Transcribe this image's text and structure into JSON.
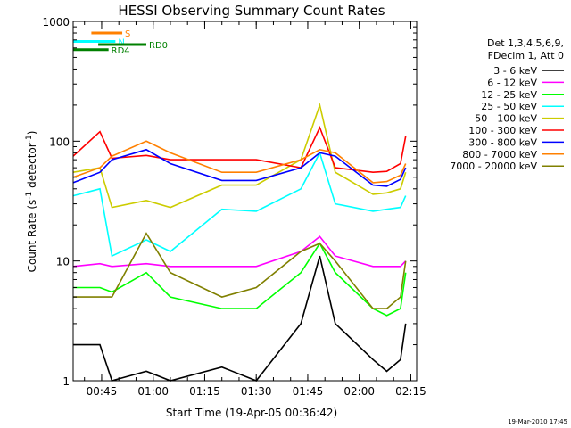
{
  "chart_data": {
    "type": "line",
    "title": "HESSI Observing Summary Count Rates",
    "xlabel": "Start Time (19-Apr-05 00:36:42)",
    "ylabel_main": "Count Rate (s",
    "ylabel_exp1": "-1",
    "ylabel_mid": " detector",
    "ylabel_exp2": "-1",
    "ylabel_end": ")",
    "y_scale": "log",
    "ylim": [
      1,
      1000
    ],
    "xlim": [
      "00:36:42",
      "02:16:42"
    ],
    "x_ticks": [
      "00:45",
      "01:00",
      "01:15",
      "01:30",
      "01:45",
      "02:00",
      "02:15"
    ],
    "y_ticks": [
      "1",
      "10",
      "100",
      "1000"
    ],
    "legend_position": "right",
    "legend_header": [
      "Det 1,3,4,5,6,9,",
      "FDecim 1, Att 0"
    ],
    "series": [
      {
        "name": "3 - 6 keV",
        "color": "#000000",
        "points": [
          [
            "00:36:42",
            2
          ],
          [
            "00:44:30",
            2
          ],
          [
            "00:48:00",
            1
          ],
          [
            "00:58:00",
            1.2
          ],
          [
            "01:05:00",
            1
          ],
          [
            "01:20:00",
            1.3
          ],
          [
            "01:30:00",
            1
          ],
          [
            "01:43:00",
            3
          ],
          [
            "01:48:30",
            11
          ],
          [
            "01:53:00",
            3
          ],
          [
            "02:04:00",
            1.5
          ],
          [
            "02:08:00",
            1.2
          ],
          [
            "02:12:00",
            1.5
          ],
          [
            "02:13:30",
            3
          ]
        ]
      },
      {
        "name": "6 - 12 keV",
        "color": "#ff00ff",
        "points": [
          [
            "00:36:42",
            9
          ],
          [
            "00:44:30",
            9.5
          ],
          [
            "00:48:00",
            9
          ],
          [
            "00:58:00",
            9.5
          ],
          [
            "01:05:00",
            9
          ],
          [
            "01:20:00",
            9
          ],
          [
            "01:30:00",
            9
          ],
          [
            "01:43:00",
            12
          ],
          [
            "01:48:30",
            16
          ],
          [
            "01:53:00",
            11
          ],
          [
            "02:04:00",
            9
          ],
          [
            "02:08:00",
            9
          ],
          [
            "02:12:00",
            9
          ],
          [
            "02:13:30",
            10
          ]
        ]
      },
      {
        "name": "12 - 25 keV",
        "color": "#00ff00",
        "points": [
          [
            "00:36:42",
            6
          ],
          [
            "00:44:30",
            6
          ],
          [
            "00:48:00",
            5.5
          ],
          [
            "00:58:00",
            8
          ],
          [
            "01:05:00",
            5
          ],
          [
            "01:20:00",
            4
          ],
          [
            "01:30:00",
            4
          ],
          [
            "01:43:00",
            8
          ],
          [
            "01:48:30",
            14
          ],
          [
            "01:53:00",
            8
          ],
          [
            "02:04:00",
            4
          ],
          [
            "02:08:00",
            3.5
          ],
          [
            "02:12:00",
            4
          ],
          [
            "02:13:30",
            8
          ]
        ]
      },
      {
        "name": "25 - 50 keV",
        "color": "#00ffff",
        "points": [
          [
            "00:36:42",
            35
          ],
          [
            "00:44:30",
            40
          ],
          [
            "00:48:00",
            11
          ],
          [
            "00:58:00",
            15
          ],
          [
            "01:05:00",
            12
          ],
          [
            "01:20:00",
            27
          ],
          [
            "01:30:00",
            26
          ],
          [
            "01:43:00",
            40
          ],
          [
            "01:48:30",
            80
          ],
          [
            "01:53:00",
            30
          ],
          [
            "02:04:00",
            26
          ],
          [
            "02:08:00",
            27
          ],
          [
            "02:12:00",
            28
          ],
          [
            "02:13:30",
            35
          ]
        ]
      },
      {
        "name": "50 - 100 keV",
        "color": "#cccc00",
        "points": [
          [
            "00:36:42",
            55
          ],
          [
            "00:44:30",
            60
          ],
          [
            "00:48:00",
            28
          ],
          [
            "00:58:00",
            32
          ],
          [
            "01:05:00",
            28
          ],
          [
            "01:20:00",
            43
          ],
          [
            "01:30:00",
            43
          ],
          [
            "01:43:00",
            70
          ],
          [
            "01:48:30",
            200
          ],
          [
            "01:53:00",
            55
          ],
          [
            "02:04:00",
            36
          ],
          [
            "02:08:00",
            37
          ],
          [
            "02:12:00",
            40
          ],
          [
            "02:13:30",
            55
          ]
        ]
      },
      {
        "name": "100 - 300 keV",
        "color": "#ff0000",
        "points": [
          [
            "00:36:42",
            75
          ],
          [
            "00:44:30",
            120
          ],
          [
            "00:48:00",
            72
          ],
          [
            "00:58:00",
            76
          ],
          [
            "01:05:00",
            70
          ],
          [
            "01:20:00",
            70
          ],
          [
            "01:30:00",
            70
          ],
          [
            "01:43:00",
            60
          ],
          [
            "01:48:30",
            130
          ],
          [
            "01:53:00",
            60
          ],
          [
            "02:04:00",
            55
          ],
          [
            "02:08:00",
            56
          ],
          [
            "02:12:00",
            65
          ],
          [
            "02:13:30",
            110
          ]
        ]
      },
      {
        "name": "300 - 800 keV",
        "color": "#0000ff",
        "points": [
          [
            "00:36:42",
            45
          ],
          [
            "00:44:30",
            55
          ],
          [
            "00:48:00",
            70
          ],
          [
            "00:58:00",
            85
          ],
          [
            "01:05:00",
            65
          ],
          [
            "01:20:00",
            47
          ],
          [
            "01:30:00",
            47
          ],
          [
            "01:43:00",
            60
          ],
          [
            "01:48:30",
            80
          ],
          [
            "01:53:00",
            75
          ],
          [
            "02:04:00",
            43
          ],
          [
            "02:08:00",
            42
          ],
          [
            "02:12:00",
            48
          ],
          [
            "02:13:30",
            60
          ]
        ]
      },
      {
        "name": "800 - 7000 keV",
        "color": "#ff8000",
        "points": [
          [
            "00:36:42",
            50
          ],
          [
            "00:44:30",
            60
          ],
          [
            "00:48:00",
            75
          ],
          [
            "00:58:00",
            100
          ],
          [
            "01:05:00",
            80
          ],
          [
            "01:20:00",
            55
          ],
          [
            "01:30:00",
            55
          ],
          [
            "01:43:00",
            70
          ],
          [
            "01:48:30",
            85
          ],
          [
            "01:53:00",
            80
          ],
          [
            "02:04:00",
            45
          ],
          [
            "02:08:00",
            46
          ],
          [
            "02:12:00",
            52
          ],
          [
            "02:13:30",
            65
          ]
        ]
      },
      {
        "name": "7000 - 20000 keV",
        "color": "#808000",
        "points": [
          [
            "00:36:42",
            5
          ],
          [
            "00:44:30",
            5
          ],
          [
            "00:48:00",
            5
          ],
          [
            "00:58:00",
            17
          ],
          [
            "01:05:00",
            8
          ],
          [
            "01:20:00",
            5
          ],
          [
            "01:30:00",
            6
          ],
          [
            "01:43:00",
            12
          ],
          [
            "01:48:30",
            14
          ],
          [
            "01:53:00",
            10
          ],
          [
            "02:04:00",
            4
          ],
          [
            "02:08:00",
            4
          ],
          [
            "02:12:00",
            5
          ],
          [
            "02:13:30",
            10
          ]
        ]
      }
    ],
    "markers": [
      {
        "label": "S",
        "color": "#ff8000",
        "start": "00:42:00",
        "end": "00:51:00",
        "value": 800
      },
      {
        "label": "N",
        "color": "#00ffff",
        "start": "00:36:42",
        "end": "00:49:00",
        "value": 680
      },
      {
        "label": "RD0",
        "color": "#008000",
        "start": "00:44:00",
        "end": "00:58:00",
        "value": 640
      },
      {
        "label": "RD4",
        "color": "#008000",
        "start": "00:36:42",
        "end": "00:47:00",
        "value": 580
      }
    ],
    "footer": "19-Mar-2010 17:45"
  }
}
